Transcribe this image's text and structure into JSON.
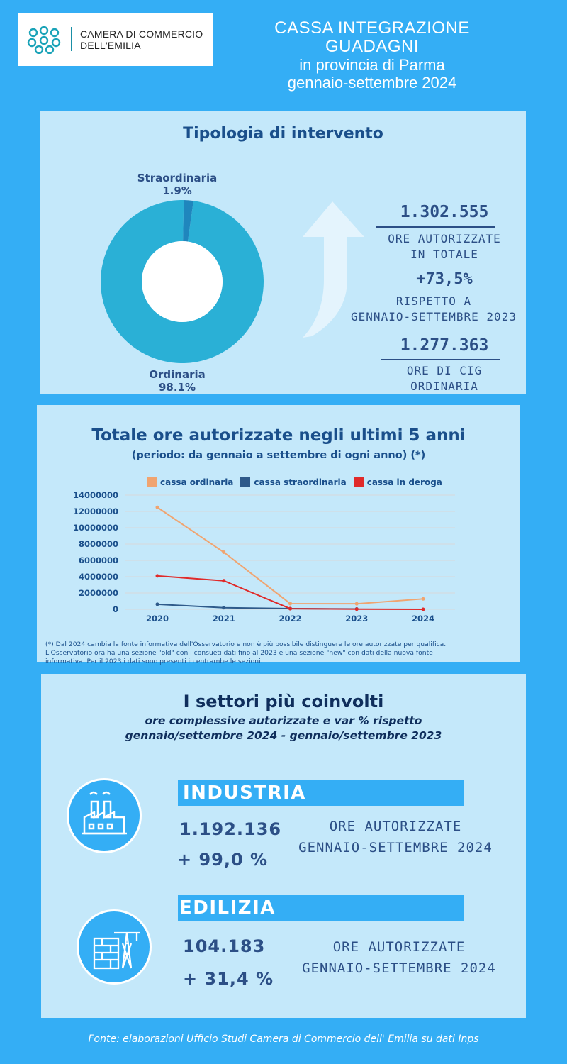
{
  "header": {
    "logo_line1": "CAMERA DI COMMERCIO",
    "logo_line2": "DELL'EMILIA",
    "title_line1": "CASSA INTEGRAZIONE",
    "title_line2": "GUADAGNI",
    "title_line3": "in provincia di Parma",
    "title_line4": "gennaio-settembre 2024"
  },
  "tipologia": {
    "title": "Tipologia di intervento",
    "straordinaria_label": "Straordinaria",
    "straordinaria_pct": "1.9%",
    "ordinaria_label": "Ordinaria",
    "ordinaria_pct": "98.1%",
    "stat1_value": "1.302.555",
    "stat1_label_line1": "ORE AUTORIZZATE",
    "stat1_label_line2": "IN TOTALE",
    "stat2_value": "+73,5%",
    "stat2_label_line1": "RISPETTO A",
    "stat2_label_line2": "GENNAIO-SETTEMBRE 2023",
    "stat3_value": "1.277.363",
    "stat3_label_line1": "ORE DI CIG",
    "stat3_label_line2": "ORDINARIA"
  },
  "trend": {
    "title": "Totale ore autorizzate negli ultimi 5 anni",
    "subtitle": "(periodo: da gennaio a settembre di ogni anno) (*)",
    "footnote_line1": "(*) Dal 2024 cambia la fonte informativa dell'Osservatorio e non è più possibile distinguere le ore autorizzate per qualifica.",
    "footnote_line2": "L'Osservatorio ora ha una sezione \"old\" con i consueti dati fino al 2023 e una sezione \"new\" con dati della nuova fonte",
    "footnote_line3": "informativa. Per il 2023 i dati sono presenti in entrambe le sezioni."
  },
  "chart_data": [
    {
      "type": "pie",
      "categories": [
        "Ordinaria",
        "Straordinaria"
      ],
      "values": [
        98.1,
        1.9
      ],
      "colors": [
        "#2ab0d6",
        "#1f86bd"
      ],
      "title": "Tipologia di intervento"
    },
    {
      "type": "line",
      "title": "Totale ore autorizzate negli ultimi 5 anni",
      "x": [
        "2020",
        "2021",
        "2022",
        "2023",
        "2024"
      ],
      "yticks": [
        "0",
        "2000000",
        "4000000",
        "6000000",
        "8000000",
        "10000000",
        "12000000",
        "14000000"
      ],
      "ylim": [
        0,
        14000000
      ],
      "legend": "top",
      "grid": true,
      "series": [
        {
          "name": "cassa ordinaria",
          "color": "#f0a470",
          "values": [
            12500000,
            7000000,
            700000,
            680000,
            1277363
          ]
        },
        {
          "name": "cassa straordinaria",
          "color": "#2f5a8a",
          "values": [
            620000,
            200000,
            90000,
            40000,
            null
          ]
        },
        {
          "name": "cassa in deroga",
          "color": "#e02a2a",
          "values": [
            4100000,
            3500000,
            80000,
            20000,
            0
          ]
        }
      ]
    }
  ],
  "settori": {
    "title": "I settori più coinvolti",
    "subtitle_line1": "ore complessive autorizzate e var % rispetto",
    "subtitle_line2": "gennaio/settembre 2024 - gennaio/settembre 2023",
    "industria_name": "INDUSTRIA",
    "industria_value": "1.192.136",
    "industria_var": "+ 99,0 %",
    "industria_label_line1": "ORE AUTORIZZATE",
    "industria_label_line2": "GENNAIO-SETTEMBRE 2024",
    "edilizia_name": "EDILIZIA",
    "edilizia_value": "104.183",
    "edilizia_var": "+ 31,4 %",
    "edilizia_label_line1": "ORE AUTORIZZATE",
    "edilizia_label_line2": "GENNAIO-SETTEMBRE  2024",
    "industria_icon": "factory-icon",
    "edilizia_icon": "construction-icon"
  },
  "footer": {
    "source": "Fonte: elaborazioni Ufficio Studi Camera di Commercio dell' Emilia su dati Inps"
  },
  "colors": {
    "background": "#34aef5",
    "panel": "#c4e8fa",
    "title_blue": "#1a4f8b"
  }
}
